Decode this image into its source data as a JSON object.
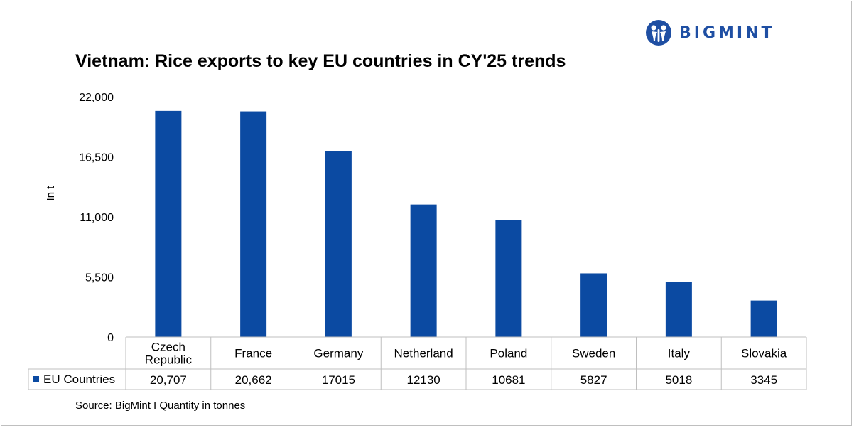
{
  "title": "Vietnam: Rice exports to key EU countries in CY'25 trends",
  "brand": {
    "name": "BIGMINT",
    "color": "#1f4fa3"
  },
  "source": "Source: BigMint I Quantity in tonnes",
  "colors": {
    "bar": "#0b4aa2",
    "grid": "#bfbfbf",
    "text": "#000000"
  },
  "chart_data": {
    "type": "bar",
    "title": "Vietnam: Rice exports to key EU countries in CY'25 trends",
    "xlabel": "",
    "ylabel": "In t",
    "ylim": [
      0,
      22000
    ],
    "yticks": [
      0,
      5500,
      11000,
      16500,
      22000
    ],
    "ytick_labels": [
      "0",
      "5,500",
      "11,000",
      "16,500",
      "22,000"
    ],
    "grid": false,
    "legend": "data-table",
    "categories": [
      [
        "Czech",
        "Republic"
      ],
      [
        "France"
      ],
      [
        "Germany"
      ],
      [
        "Netherland"
      ],
      [
        "Poland"
      ],
      [
        "Sweden"
      ],
      [
        "Italy"
      ],
      [
        "Slovakia"
      ]
    ],
    "series": [
      {
        "name": "EU Countries",
        "values": [
          20707,
          20662,
          17015,
          12130,
          10681,
          5827,
          5018,
          3345
        ],
        "labels": [
          "20,707",
          "20,662",
          "17015",
          "12130",
          "10681",
          "5827",
          "5018",
          "3345"
        ]
      }
    ]
  }
}
